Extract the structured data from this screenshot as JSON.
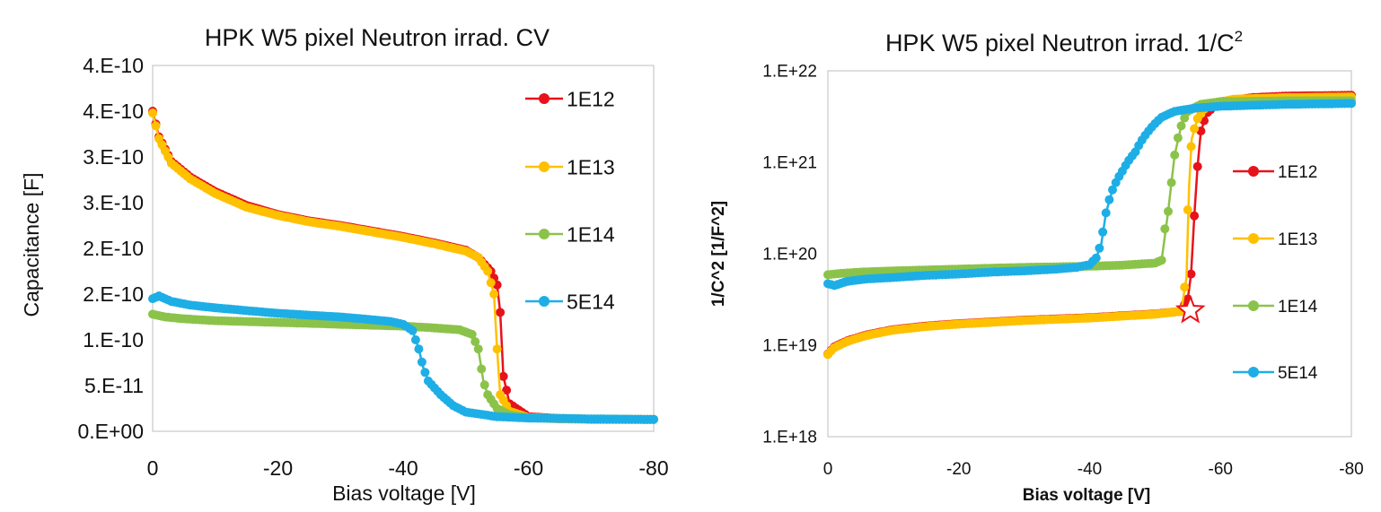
{
  "chart_data": [
    {
      "type": "line",
      "title": "HPK W5 pixel Neutron irrad. CV",
      "xlabel": "Bias voltage [V]",
      "ylabel": "Capacitance [F]",
      "xlim": [
        0,
        -80
      ],
      "ylim": [
        0,
        4e-10
      ],
      "x_ticks": [
        {
          "value": 0,
          "label": "0"
        },
        {
          "value": -20,
          "label": "-20"
        },
        {
          "value": -40,
          "label": "-40"
        },
        {
          "value": -60,
          "label": "-60"
        },
        {
          "value": -80,
          "label": "-80"
        }
      ],
      "y_ticks": [
        {
          "value": 0,
          "label": "0.E+00"
        },
        {
          "value": 5e-11,
          "label": "5.E-11"
        },
        {
          "value": 1e-10,
          "label": "1.E-10"
        },
        {
          "value": 1.5e-10,
          "label": "2.E-10"
        },
        {
          "value": 2e-10,
          "label": "2.E-10"
        },
        {
          "value": 2.5e-10,
          "label": "3.E-10"
        },
        {
          "value": 3e-10,
          "label": "3.E-10"
        },
        {
          "value": 3.5e-10,
          "label": "4.E-10"
        },
        {
          "value": 4e-10,
          "label": "4.E-10"
        }
      ],
      "grid": false,
      "legend": "right",
      "series": [
        {
          "name": "1E12",
          "color": "#e8121a",
          "points": [
            [
              0,
              3.5e-10
            ],
            [
              -1,
              3.22e-10
            ],
            [
              -3,
              2.95e-10
            ],
            [
              -6,
              2.78e-10
            ],
            [
              -10,
              2.62e-10
            ],
            [
              -15,
              2.47e-10
            ],
            [
              -20,
              2.37e-10
            ],
            [
              -25,
              2.3e-10
            ],
            [
              -30,
              2.25e-10
            ],
            [
              -35,
              2.19e-10
            ],
            [
              -40,
              2.13e-10
            ],
            [
              -45,
              2.06e-10
            ],
            [
              -50,
              1.98e-10
            ],
            [
              -52,
              1.9e-10
            ],
            [
              -54,
              1.75e-10
            ],
            [
              -55,
              1.6e-10
            ],
            [
              -55.5,
              1.3e-10
            ],
            [
              -56,
              6e-11
            ],
            [
              -57,
              3e-11
            ],
            [
              -60,
              1.6e-11
            ],
            [
              -65,
              1.4e-11
            ],
            [
              -70,
              1.3e-11
            ],
            [
              -80,
              1.3e-11
            ]
          ]
        },
        {
          "name": "1E13",
          "color": "#ffc000",
          "points": [
            [
              0,
              3.48e-10
            ],
            [
              -1,
              3.2e-10
            ],
            [
              -3,
              2.93e-10
            ],
            [
              -6,
              2.76e-10
            ],
            [
              -10,
              2.6e-10
            ],
            [
              -15,
              2.45e-10
            ],
            [
              -20,
              2.36e-10
            ],
            [
              -25,
              2.29e-10
            ],
            [
              -30,
              2.24e-10
            ],
            [
              -35,
              2.18e-10
            ],
            [
              -40,
              2.12e-10
            ],
            [
              -45,
              2.05e-10
            ],
            [
              -50,
              1.97e-10
            ],
            [
              -52,
              1.9e-10
            ],
            [
              -53.5,
              1.75e-10
            ],
            [
              -54.5,
              1.5e-10
            ],
            [
              -55,
              9e-11
            ],
            [
              -55.5,
              4e-11
            ],
            [
              -57,
              2.2e-11
            ],
            [
              -60,
              1.5e-11
            ],
            [
              -65,
              1.35e-11
            ],
            [
              -70,
              1.3e-11
            ],
            [
              -80,
              1.3e-11
            ]
          ]
        },
        {
          "name": "1E14",
          "color": "#8bc34a",
          "points": [
            [
              0,
              1.28e-10
            ],
            [
              -2,
              1.25e-10
            ],
            [
              -5,
              1.23e-10
            ],
            [
              -10,
              1.21e-10
            ],
            [
              -20,
              1.19e-10
            ],
            [
              -30,
              1.17e-10
            ],
            [
              -40,
              1.15e-10
            ],
            [
              -45,
              1.13e-10
            ],
            [
              -49,
              1.11e-10
            ],
            [
              -51,
              1.06e-10
            ],
            [
              -52,
              9e-11
            ],
            [
              -52.8,
              5.5e-11
            ],
            [
              -53.5,
              4e-11
            ],
            [
              -55,
              2.5e-11
            ],
            [
              -57,
              1.8e-11
            ],
            [
              -60,
              1.5e-11
            ],
            [
              -70,
              1.35e-11
            ],
            [
              -80,
              1.3e-11
            ]
          ]
        },
        {
          "name": "5E14",
          "color": "#1eaee6",
          "points": [
            [
              0,
              1.45e-10
            ],
            [
              -1,
              1.48e-10
            ],
            [
              -3,
              1.42e-10
            ],
            [
              -6,
              1.38e-10
            ],
            [
              -10,
              1.35e-10
            ],
            [
              -15,
              1.32e-10
            ],
            [
              -20,
              1.29e-10
            ],
            [
              -25,
              1.27e-10
            ],
            [
              -30,
              1.25e-10
            ],
            [
              -35,
              1.22e-10
            ],
            [
              -38,
              1.2e-10
            ],
            [
              -40,
              1.17e-10
            ],
            [
              -41.5,
              1.1e-10
            ],
            [
              -42.5,
              9e-11
            ],
            [
              -43.2,
              7e-11
            ],
            [
              -44,
              5.5e-11
            ],
            [
              -46,
              4e-11
            ],
            [
              -48,
              2.8e-11
            ],
            [
              -50,
              2.1e-11
            ],
            [
              -55,
              1.6e-11
            ],
            [
              -60,
              1.45e-11
            ],
            [
              -70,
              1.35e-11
            ],
            [
              -80,
              1.3e-11
            ]
          ]
        }
      ]
    },
    {
      "type": "line",
      "title": "HPK W5 pixel Neutron irrad. 1/C",
      "title_sup": "2",
      "xlabel": "Bias voltage [V]",
      "ylabel": "1/C^2 [1/F^2]",
      "xlim": [
        0,
        -80
      ],
      "ylim": [
        1e+18,
        1e+22
      ],
      "yscale": "log",
      "x_ticks": [
        {
          "value": 0,
          "label": "0"
        },
        {
          "value": -20,
          "label": "-20"
        },
        {
          "value": -40,
          "label": "-40"
        },
        {
          "value": -60,
          "label": "-60"
        },
        {
          "value": -80,
          "label": "-80"
        }
      ],
      "y_ticks": [
        {
          "value": 1e+18,
          "label": "1.E+18"
        },
        {
          "value": 1e+19,
          "label": "1.E+19"
        },
        {
          "value": 1e+20,
          "label": "1.E+20"
        },
        {
          "value": 1e+21,
          "label": "1.E+21"
        },
        {
          "value": 1e+22,
          "label": "1.E+22"
        }
      ],
      "grid": false,
      "legend": "right",
      "marker": {
        "type": "star",
        "x": -55.4,
        "y": 2.4e+19,
        "color": "#e8121a"
      },
      "series": [
        {
          "name": "1E12",
          "color": "#e8121a",
          "points": [
            [
              0,
              8e+18
            ],
            [
              -1,
              9.6e+18
            ],
            [
              -3,
              1.12e+19
            ],
            [
              -6,
              1.3e+19
            ],
            [
              -10,
              1.48e+19
            ],
            [
              -15,
              1.62e+19
            ],
            [
              -20,
              1.72e+19
            ],
            [
              -30,
              1.88e+19
            ],
            [
              -40,
              2e+19
            ],
            [
              -50,
              2.2e+19
            ],
            [
              -54,
              2.35e+19
            ],
            [
              -55,
              3.2e+19
            ],
            [
              -55.5,
              6e+19
            ],
            [
              -56,
              2.6e+20
            ],
            [
              -56.5,
              9e+20
            ],
            [
              -57,
              2.2e+21
            ],
            [
              -58,
              3.5e+21
            ],
            [
              -60,
              4.6e+21
            ],
            [
              -65,
              5.1e+21
            ],
            [
              -70,
              5.3e+21
            ],
            [
              -80,
              5.4e+21
            ]
          ]
        },
        {
          "name": "1E13",
          "color": "#ffc000",
          "points": [
            [
              0,
              7.9e+18
            ],
            [
              -1,
              9.4e+18
            ],
            [
              -3,
              1.1e+19
            ],
            [
              -6,
              1.28e+19
            ],
            [
              -10,
              1.46e+19
            ],
            [
              -15,
              1.6e+19
            ],
            [
              -20,
              1.7e+19
            ],
            [
              -30,
              1.86e+19
            ],
            [
              -40,
              1.98e+19
            ],
            [
              -50,
              2.18e+19
            ],
            [
              -54,
              2.35e+19
            ],
            [
              -54.8,
              5.5e+19
            ],
            [
              -55.2,
              5.5e+20
            ],
            [
              -55.6,
              1.8e+21
            ],
            [
              -56.5,
              3e+21
            ],
            [
              -58,
              4.2e+21
            ],
            [
              -62,
              4.9e+21
            ],
            [
              -70,
              5.1e+21
            ],
            [
              -80,
              5.2e+21
            ]
          ]
        },
        {
          "name": "1E14",
          "color": "#8bc34a",
          "points": [
            [
              0,
              5.9e+19
            ],
            [
              -2,
              6.1e+19
            ],
            [
              -5,
              6.3e+19
            ],
            [
              -10,
              6.5e+19
            ],
            [
              -20,
              6.8e+19
            ],
            [
              -30,
              7.1e+19
            ],
            [
              -40,
              7.3e+19
            ],
            [
              -45,
              7.5e+19
            ],
            [
              -50,
              7.9e+19
            ],
            [
              -51,
              8.5e+19
            ],
            [
              -52,
              2.9e+20
            ],
            [
              -52.5,
              6e+20
            ],
            [
              -53,
              1.2e+21
            ],
            [
              -54,
              2.5e+21
            ],
            [
              -55,
              3.6e+21
            ],
            [
              -57,
              4.3e+21
            ],
            [
              -60,
              4.6e+21
            ],
            [
              -70,
              4.7e+21
            ],
            [
              -80,
              4.7e+21
            ]
          ]
        },
        {
          "name": "5E14",
          "color": "#1eaee6",
          "points": [
            [
              0,
              4.7e+19
            ],
            [
              -1,
              4.5e+19
            ],
            [
              -3,
              5e+19
            ],
            [
              -6,
              5.3e+19
            ],
            [
              -10,
              5.5e+19
            ],
            [
              -15,
              5.8e+19
            ],
            [
              -20,
              6e+19
            ],
            [
              -25,
              6.3e+19
            ],
            [
              -30,
              6.5e+19
            ],
            [
              -35,
              6.8e+19
            ],
            [
              -38,
              7.1e+19
            ],
            [
              -40,
              7.6e+19
            ],
            [
              -41,
              9e+19
            ],
            [
              -41.8,
              1.3e+20
            ],
            [
              -42.5,
              2.8e+20
            ],
            [
              -43.5,
              5e+20
            ],
            [
              -45,
              8e+20
            ],
            [
              -47,
              1.3e+21
            ],
            [
              -49,
              2.2e+21
            ],
            [
              -51,
              3.1e+21
            ],
            [
              -53,
              3.6e+21
            ],
            [
              -56,
              3.9e+21
            ],
            [
              -60,
              4.1e+21
            ],
            [
              -70,
              4.3e+21
            ],
            [
              -80,
              4.4e+21
            ]
          ]
        }
      ]
    }
  ]
}
